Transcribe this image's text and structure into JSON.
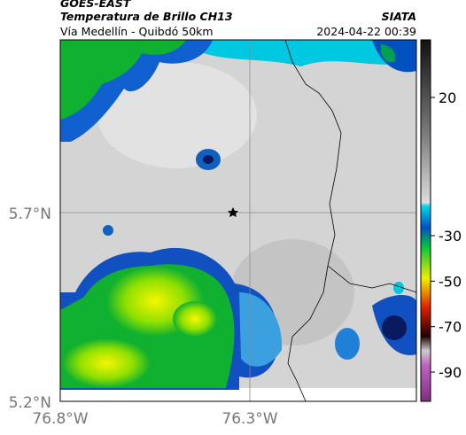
{
  "header": {
    "source": "GOES-EAST",
    "title": "Temperatura de Brillo CH13",
    "organization": "SIATA",
    "route": "Vía Medellín - Quibdó 50km",
    "timestamp": "2024-04-22 00:39"
  },
  "axes": {
    "lat_labels": [
      "5.7°N",
      "5.2°N"
    ],
    "lon_labels": [
      "76.8°W",
      "76.3°W"
    ]
  },
  "colorbar": {
    "ticks": [
      20,
      -30,
      -50,
      -70,
      -90
    ]
  }
}
